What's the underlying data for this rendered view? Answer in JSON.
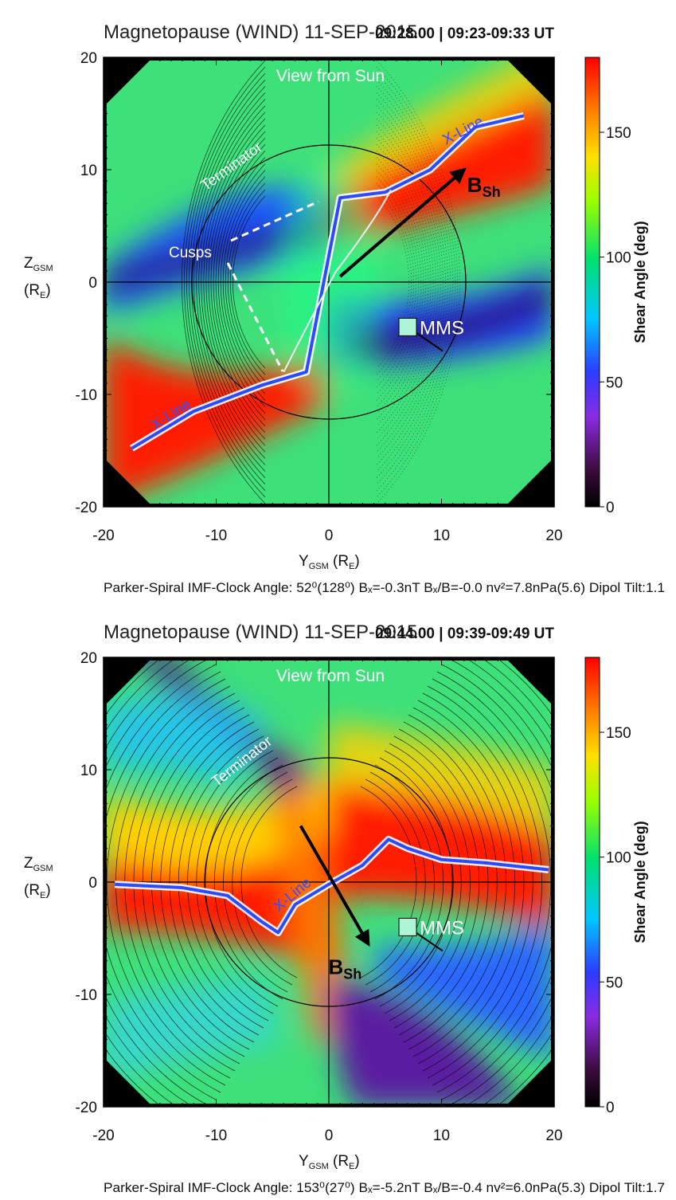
{
  "panels": [
    {
      "title": "Magnetopause (WIND) 11-SEP-2015",
      "time_label": "09:28.00 | 09:23-09:33 UT",
      "view_label": "View from Sun",
      "terminator_label": "Terminator",
      "cusps_label": "Cusps",
      "xline_labels": [
        "X-Line",
        "X-Line"
      ],
      "bsh_label": "B",
      "bsh_sub": "Sh",
      "mms_label": "MMS",
      "footer": "Parker-Spiral  IMF-Clock Angle: 52⁰(128⁰)   Bₓ=-0.3nT   Bₓ/B=-0.0   nv²=7.8nPa(5.6)  Dipol Tilt:1.1"
    },
    {
      "title": "Magnetopause (WIND) 11-SEP-2015",
      "time_label": "09:44.00 | 09:39-09:49 UT",
      "view_label": "View from Sun",
      "terminator_label": "Terminator",
      "xline_labels": [
        "X-Line"
      ],
      "bsh_label": "B",
      "bsh_sub": "Sh",
      "mms_label": "MMS",
      "footer": "Parker-Spiral  IMF-Clock Angle: 153⁰(27⁰)   Bₓ=-5.2nT   Bₓ/B=-0.4   nv²=6.0nPa(5.3)  Dipol Tilt:1.7"
    }
  ],
  "axes": {
    "xlabel": "Y",
    "xlabel_sub": "GSM",
    "xlabel_unit": " (R",
    "xlabel_unit_sub": "E",
    "xlabel_close": ")",
    "ylabel": "Z",
    "ylabel_sub": "GSM",
    "ylabel_unit": "(R",
    "ylabel_unit_sub": "E",
    "ylabel_close": ")",
    "colorbar_label": "Shear Angle (deg)"
  },
  "chart_data": [
    {
      "type": "heatmap",
      "title": "Magnetopause (WIND) 11-SEP-2015",
      "xlim": [
        -20,
        20
      ],
      "ylim": [
        -20,
        20
      ],
      "xticks": [
        -20,
        -10,
        0,
        10,
        20
      ],
      "yticks": [
        20,
        10,
        0,
        -10,
        -20
      ],
      "colorbar": {
        "label": "Shear Angle (deg)",
        "range": [
          0,
          180
        ],
        "ticks": [
          0,
          50,
          100,
          150
        ]
      },
      "mms_position": [
        7,
        -4
      ],
      "bsh_arrow": {
        "from": [
          1,
          0.5
        ],
        "to": [
          12,
          10
        ]
      },
      "xline_points": [
        [
          -17.5,
          -14.8
        ],
        [
          -12,
          -11.5
        ],
        [
          -6,
          -9.2
        ],
        [
          -2,
          -8
        ],
        [
          1,
          7.5
        ],
        [
          5,
          8
        ],
        [
          9,
          10
        ],
        [
          13,
          13.8
        ],
        [
          17.3,
          14.8
        ]
      ]
    },
    {
      "type": "heatmap",
      "title": "Magnetopause (WIND) 11-SEP-2015",
      "xlim": [
        -20,
        20
      ],
      "ylim": [
        -20,
        20
      ],
      "xticks": [
        -20,
        -10,
        0,
        10,
        20
      ],
      "yticks": [
        20,
        10,
        0,
        -10,
        -20
      ],
      "colorbar": {
        "label": "Shear Angle (deg)",
        "range": [
          0,
          180
        ],
        "ticks": [
          0,
          50,
          100,
          150
        ]
      },
      "mms_position": [
        7,
        -4
      ],
      "bsh_arrow": {
        "from": [
          -2.5,
          5
        ],
        "to": [
          3.5,
          -5.5
        ]
      },
      "xline_points": [
        [
          -19,
          -0.2
        ],
        [
          -13,
          -0.5
        ],
        [
          -9,
          -1.2
        ],
        [
          -6,
          -3.5
        ],
        [
          -4.5,
          -4.5
        ],
        [
          -3,
          -2
        ],
        [
          0,
          -0.2
        ],
        [
          3,
          1.5
        ],
        [
          5.3,
          3.8
        ],
        [
          7,
          3
        ],
        [
          10,
          2
        ],
        [
          14,
          1.7
        ],
        [
          19.5,
          1.1
        ]
      ]
    }
  ]
}
